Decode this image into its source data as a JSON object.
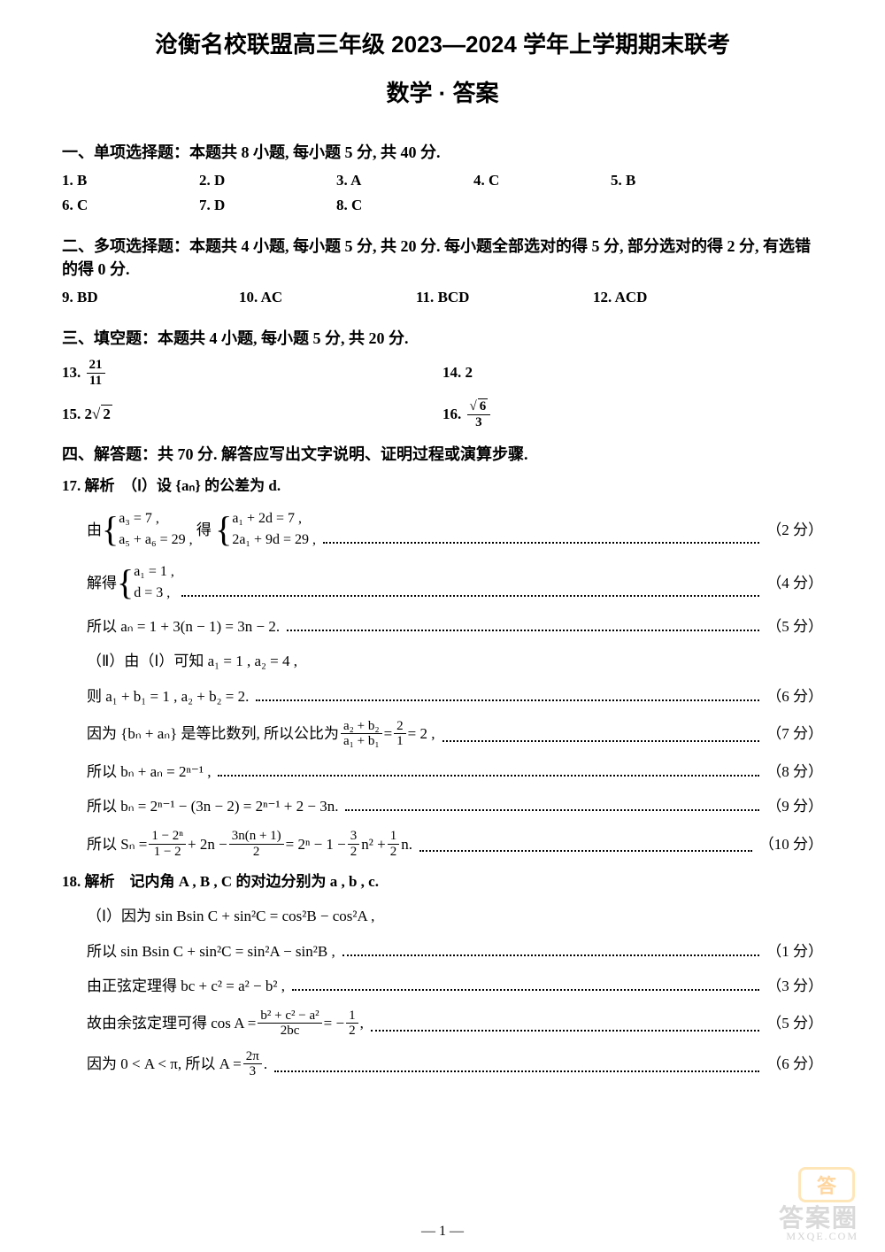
{
  "title": "沧衡名校联盟高三年级 2023—2024 学年上学期期末联考",
  "subtitle": "数学 · 答案",
  "section1": {
    "header": "一、单项选择题：本题共 8 小题, 每小题 5 分, 共 40 分.",
    "answers": [
      {
        "n": "1.",
        "v": "B"
      },
      {
        "n": "2.",
        "v": "D"
      },
      {
        "n": "3.",
        "v": "A"
      },
      {
        "n": "4.",
        "v": "C"
      },
      {
        "n": "5.",
        "v": "B"
      },
      {
        "n": "6.",
        "v": "C"
      },
      {
        "n": "7.",
        "v": "D"
      },
      {
        "n": "8.",
        "v": "C"
      }
    ]
  },
  "section2": {
    "header": "二、多项选择题：本题共 4 小题, 每小题 5 分, 共 20 分. 每小题全部选对的得 5 分, 部分选对的得 2 分, 有选错的得 0 分.",
    "answers": [
      {
        "n": "9.",
        "v": "BD"
      },
      {
        "n": "10.",
        "v": "AC"
      },
      {
        "n": "11.",
        "v": "BCD"
      },
      {
        "n": "12.",
        "v": "ACD"
      }
    ]
  },
  "section3": {
    "header": "三、填空题：本题共 4 小题, 每小题 5 分, 共 20 分.",
    "a13_label": "13.",
    "a13_num": "21",
    "a13_den": "11",
    "a14": "14. 2",
    "a15_label": "15. 2",
    "a15_sqrt": "2",
    "a16_label": "16.",
    "a16_num": "6",
    "a16_den": "3"
  },
  "section4": {
    "header": "四、解答题：共 70 分. 解答应写出文字说明、证明过程或演算步骤.",
    "q17_head": "17. 解析　（Ⅰ）设 {aₙ} 的公差为 d.",
    "q17_l1_pre": "由",
    "q17_l1_b1a": "a₃ = 7 ,",
    "q17_l1_b1b": "a₅ + a₆ = 29 ,",
    "q17_l1_mid": "得",
    "q17_l1_b2a": "a₁ + 2d = 7 ,",
    "q17_l1_b2b": "2a₁ + 9d = 29 ,",
    "q17_l1_score": "（2 分）",
    "q17_l2_pre": "解得",
    "q17_l2_b1a": "a₁ = 1 ,",
    "q17_l2_b1b": "d = 3 ,",
    "q17_l2_score": "（4 分）",
    "q17_l3": "所以 aₙ = 1 + 3(n − 1) = 3n − 2.",
    "q17_l3_score": "（5 分）",
    "q17_l4": "（Ⅱ）由（Ⅰ）可知 a₁ = 1 , a₂ = 4 ,",
    "q17_l5": "则 a₁ + b₁ = 1 , a₂ + b₂ = 2.",
    "q17_l5_score": "（6 分）",
    "q17_l6_pre": "因为 {bₙ + aₙ} 是等比数列, 所以公比为",
    "q17_l6_fnum": "a₂ + b₂",
    "q17_l6_fden": "a₁ + b₁",
    "q17_l6_mid": " = ",
    "q17_l6_f2num": "2",
    "q17_l6_f2den": "1",
    "q17_l6_post": " = 2 ,",
    "q17_l6_score": "（7 分）",
    "q17_l7": "所以 bₙ + aₙ = 2ⁿ⁻¹ ,",
    "q17_l7_score": "（8 分）",
    "q17_l8": "所以 bₙ = 2ⁿ⁻¹ − (3n − 2) = 2ⁿ⁻¹ + 2 − 3n.",
    "q17_l8_score": "（9 分）",
    "q17_l9_pre": "所以 Sₙ = ",
    "q17_l9_f1num": "1 − 2ⁿ",
    "q17_l9_f1den": "1 − 2",
    "q17_l9_mid1": " + 2n − ",
    "q17_l9_f2num": "3n(n + 1)",
    "q17_l9_f2den": "2",
    "q17_l9_mid2": " = 2ⁿ − 1 − ",
    "q17_l9_f3num": "3",
    "q17_l9_f3den": "2",
    "q17_l9_mid3": "n² + ",
    "q17_l9_f4num": "1",
    "q17_l9_f4den": "2",
    "q17_l9_post": "n.",
    "q17_l9_score": "（10 分）",
    "q18_head": "18. 解析　记内角 A , B , C 的对边分别为 a , b , c.",
    "q18_l1": "（Ⅰ）因为 sin Bsin C + sin²C = cos²B − cos²A ,",
    "q18_l2": "所以 sin Bsin C + sin²C = sin²A − sin²B ,",
    "q18_l2_score": "（1 分）",
    "q18_l3": "由正弦定理得 bc + c² = a² − b² ,",
    "q18_l3_score": "（3 分）",
    "q18_l4_pre": "故由余弦定理可得 cos A = ",
    "q18_l4_fnum": "b² + c² − a²",
    "q18_l4_fden": "2bc",
    "q18_l4_mid": " = − ",
    "q18_l4_f2num": "1",
    "q18_l4_f2den": "2",
    "q18_l4_post": " ,",
    "q18_l4_score": "（5 分）",
    "q18_l5_pre": "因为 0 < A < π, 所以 A = ",
    "q18_l5_fnum": "2π",
    "q18_l5_fden": "3",
    "q18_l5_post": ".",
    "q18_l5_score": "（6 分）"
  },
  "page_num": "— 1 —",
  "watermark_main": "答案圈",
  "watermark_small": "MXQE.COM"
}
